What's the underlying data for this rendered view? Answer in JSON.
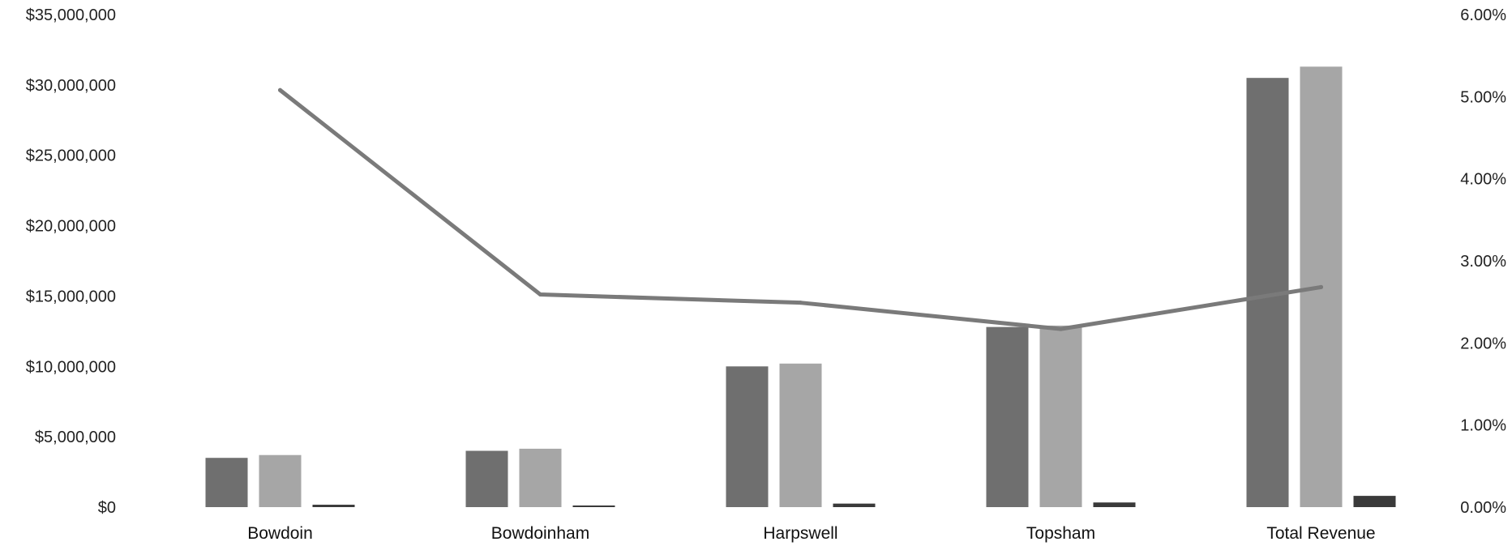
{
  "chart_data": {
    "type": "bar",
    "categories": [
      "Bowdoin",
      "Bowdoinham",
      "Harpswell",
      "Topsham",
      "Total Revenue"
    ],
    "series": [
      {
        "type": "bar",
        "axis": "left",
        "color": "#6f6f6f",
        "values": [
          3500000,
          4000000,
          10000000,
          12800000,
          30500000
        ]
      },
      {
        "type": "bar",
        "axis": "left",
        "color": "#a6a6a6",
        "values": [
          3700000,
          4150000,
          10200000,
          12900000,
          31300000
        ]
      },
      {
        "type": "bar",
        "axis": "left",
        "color": "#3a3a3a",
        "values": [
          170000,
          100000,
          250000,
          330000,
          800000
        ]
      },
      {
        "type": "line",
        "axis": "right",
        "color": "#7a7a7a",
        "values": [
          0.0508,
          0.0259,
          0.0249,
          0.0217,
          0.0268
        ]
      }
    ],
    "y_left": {
      "min": 0,
      "max": 35000000,
      "step": 5000000,
      "tick_labels": [
        "$0",
        "$5,000,000",
        "$10,000,000",
        "$15,000,000",
        "$20,000,000",
        "$25,000,000",
        "$30,000,000",
        "$35,000,000"
      ]
    },
    "y_right": {
      "min": 0,
      "max": 0.06,
      "step": 0.01,
      "tick_labels": [
        "0.00%",
        "1.00%",
        "2.00%",
        "3.00%",
        "4.00%",
        "5.00%",
        "6.00%"
      ]
    },
    "grid": false,
    "legend": "none"
  }
}
